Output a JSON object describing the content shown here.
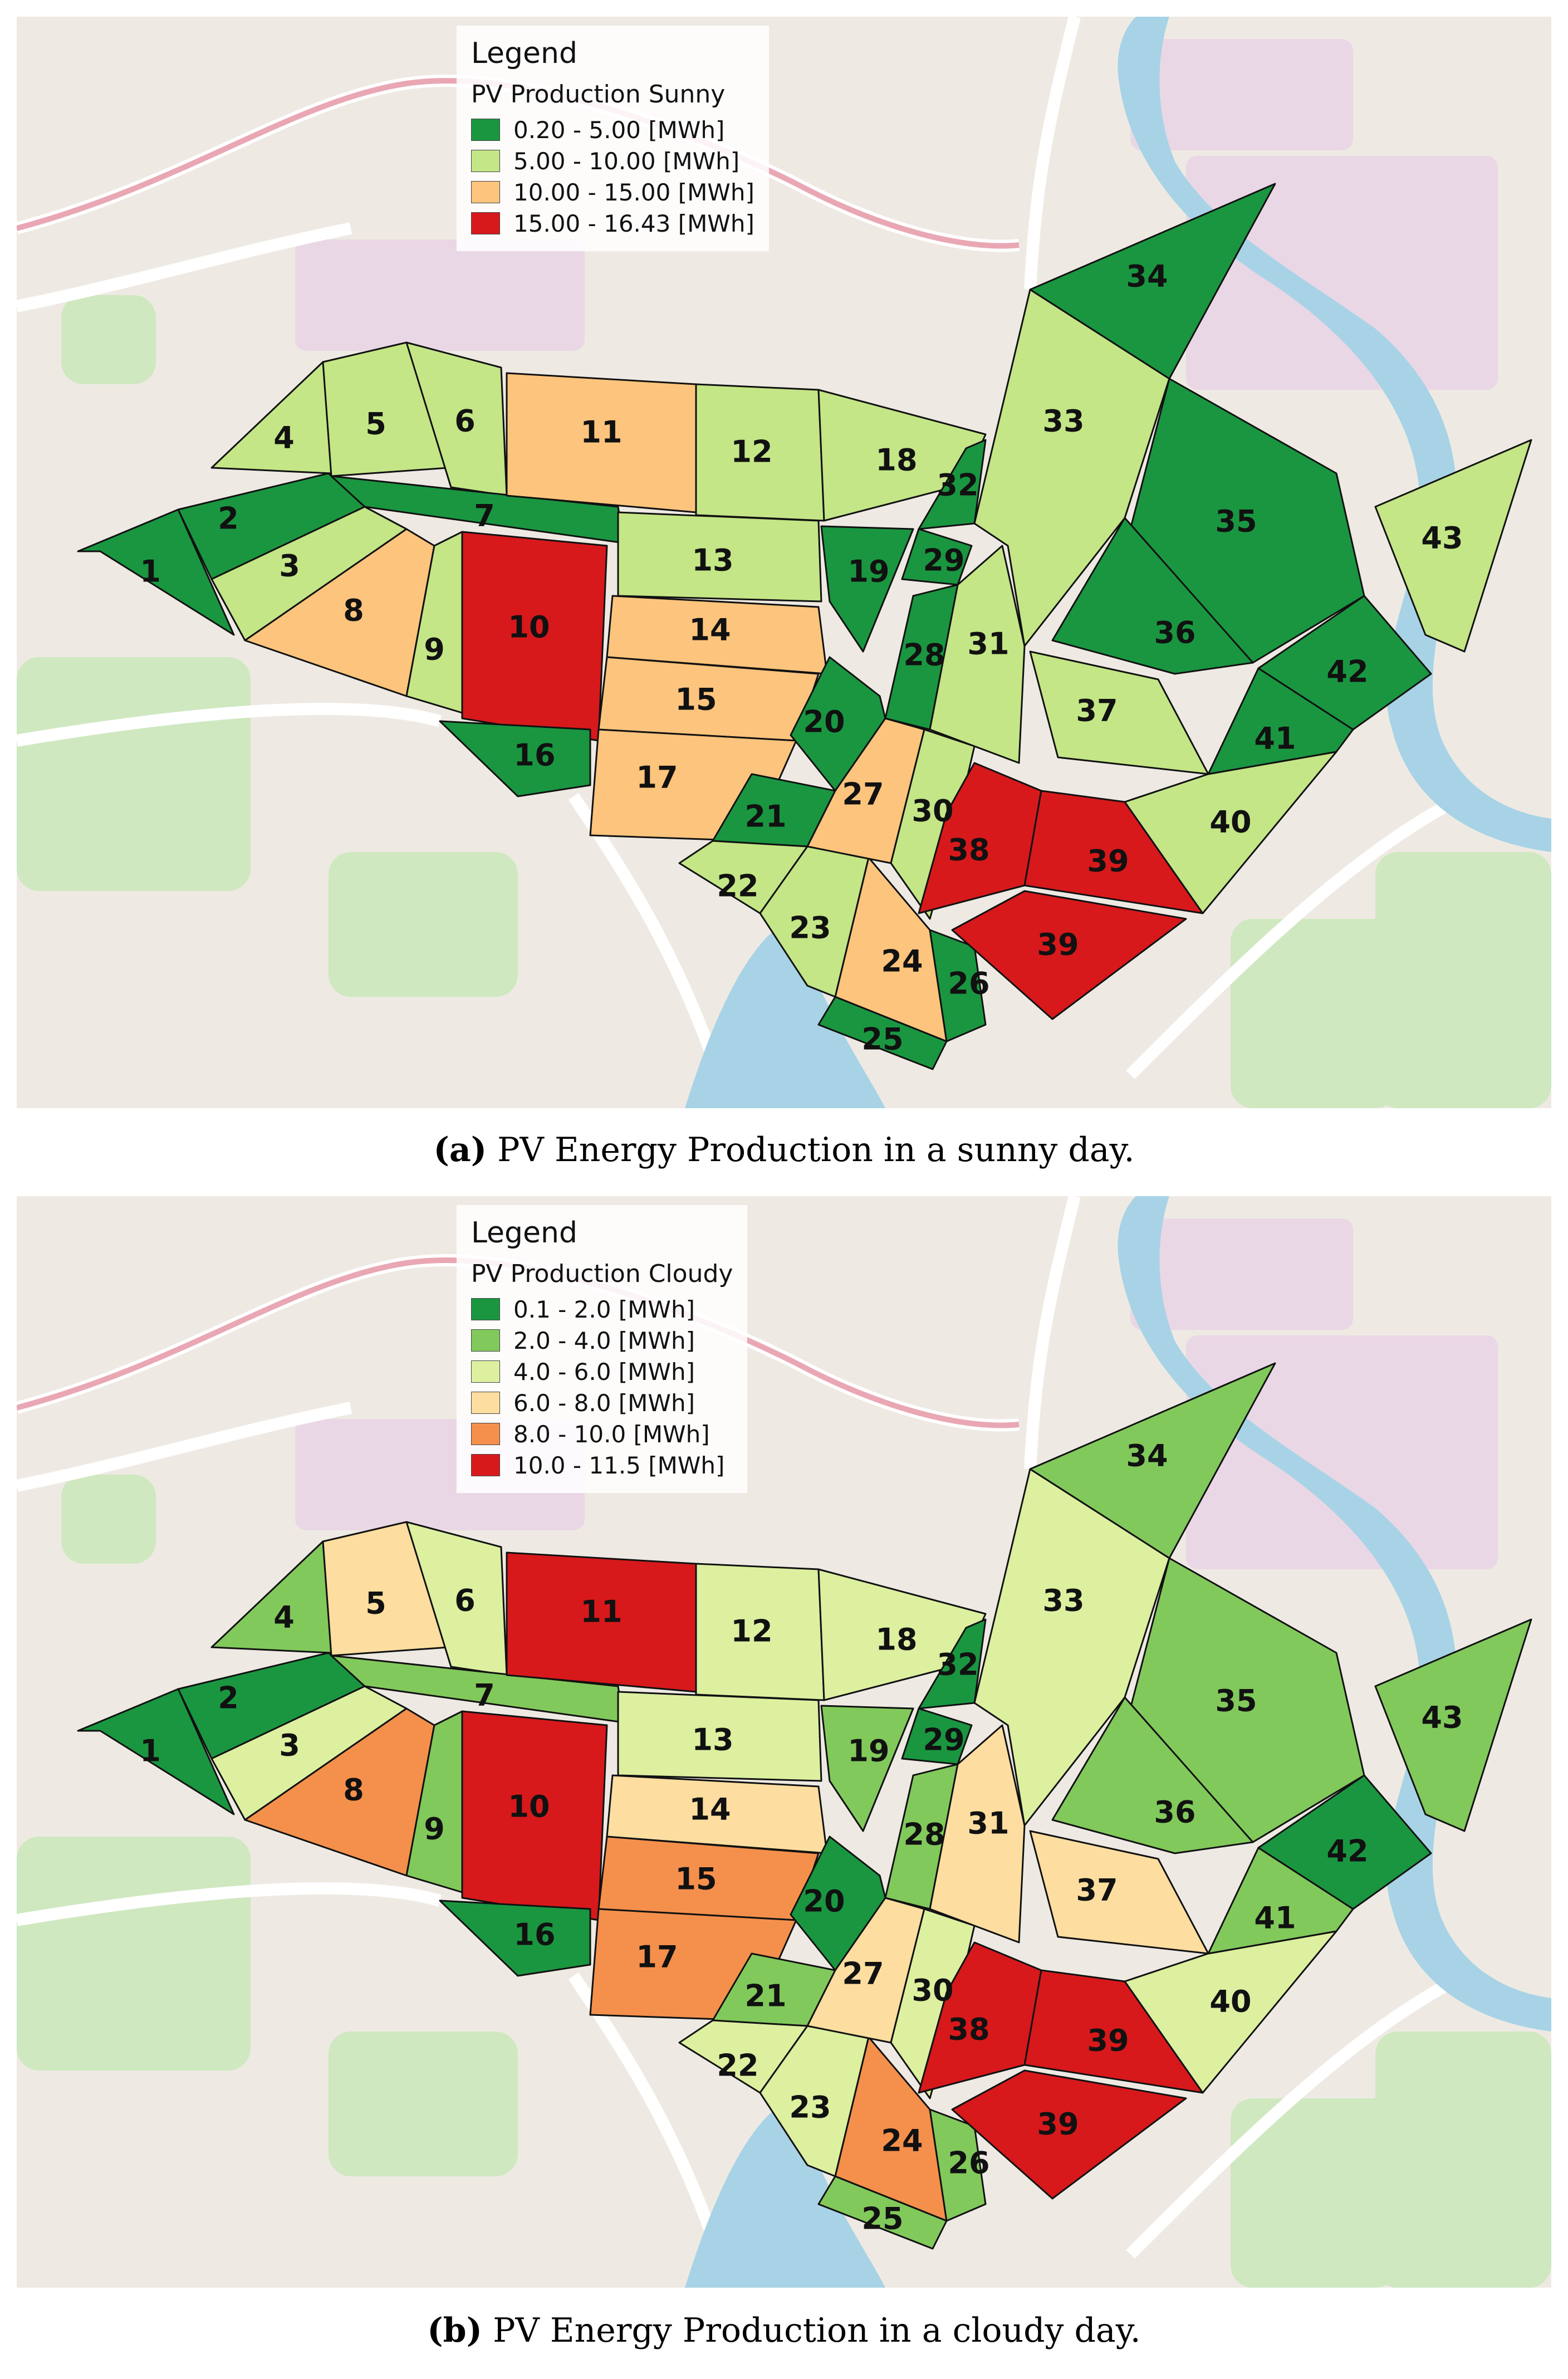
{
  "panels": [
    {
      "id": "a",
      "caption_label": "(a)",
      "caption_text": " PV Energy Production in a sunny day.",
      "legend": {
        "title": "Legend",
        "subtitle": "PV Production Sunny",
        "classes": [
          {
            "label": "0.20 - 5.00 [MWh]",
            "color": "#1a9641"
          },
          {
            "label": "5.00 - 10.00 [MWh]",
            "color": "#c4e687"
          },
          {
            "label": "10.00 - 15.00 [MWh]",
            "color": "#fdc47d"
          },
          {
            "label": "15.00 - 16.43 [MWh]",
            "color": "#d7191c"
          }
        ]
      },
      "zone_classes": {
        "1": 0,
        "2": 0,
        "3": 1,
        "4": 1,
        "5": 1,
        "6": 1,
        "7": 0,
        "8": 2,
        "9": 1,
        "10": 3,
        "11": 2,
        "12": 1,
        "13": 1,
        "14": 2,
        "15": 2,
        "16": 0,
        "17": 2,
        "18": 1,
        "19": 0,
        "20": 0,
        "21": 0,
        "22": 1,
        "23": 1,
        "24": 2,
        "25": 0,
        "26": 0,
        "27": 2,
        "28": 0,
        "29": 0,
        "30": 1,
        "31": 1,
        "32": 0,
        "33": 1,
        "34": 0,
        "35": 0,
        "36": 0,
        "37": 1,
        "38": 3,
        "39a": 3,
        "39b": 3,
        "40": 1,
        "41": 0,
        "42": 0,
        "43": 1
      }
    },
    {
      "id": "b",
      "caption_label": "(b)",
      "caption_text": " PV Energy Production in a cloudy day.",
      "legend": {
        "title": "Legend",
        "subtitle": "PV Production Cloudy",
        "classes": [
          {
            "label": "0.1 - 2.0 [MWh]",
            "color": "#1a9641"
          },
          {
            "label": "2.0 - 4.0 [MWh]",
            "color": "#82c95c"
          },
          {
            "label": "4.0 - 6.0 [MWh]",
            "color": "#dcf0a0"
          },
          {
            "label": "6.0 - 8.0 [MWh]",
            "color": "#fddea0"
          },
          {
            "label": "8.0 - 10.0 [MWh]",
            "color": "#f4904c"
          },
          {
            "label": "10.0 - 11.5 [MWh]",
            "color": "#d7191c"
          }
        ]
      },
      "zone_classes": {
        "1": 0,
        "2": 0,
        "3": 2,
        "4": 1,
        "5": 3,
        "6": 2,
        "7": 1,
        "8": 4,
        "9": 1,
        "10": 5,
        "11": 5,
        "12": 2,
        "13": 2,
        "14": 3,
        "15": 4,
        "16": 0,
        "17": 4,
        "18": 2,
        "19": 1,
        "20": 0,
        "21": 1,
        "22": 2,
        "23": 2,
        "24": 4,
        "25": 1,
        "26": 1,
        "27": 3,
        "28": 1,
        "29": 0,
        "30": 2,
        "31": 3,
        "32": 0,
        "33": 2,
        "34": 1,
        "35": 1,
        "36": 1,
        "37": 3,
        "38": 5,
        "39a": 5,
        "39b": 5,
        "40": 2,
        "41": 1,
        "42": 0,
        "43": 1
      }
    }
  ],
  "zones": [
    {
      "id": "1",
      "label": "1"
    },
    {
      "id": "2",
      "label": "2"
    },
    {
      "id": "3",
      "label": "3"
    },
    {
      "id": "4",
      "label": "4"
    },
    {
      "id": "5",
      "label": "5"
    },
    {
      "id": "6",
      "label": "6"
    },
    {
      "id": "7",
      "label": "7"
    },
    {
      "id": "8",
      "label": "8"
    },
    {
      "id": "9",
      "label": "9"
    },
    {
      "id": "10",
      "label": "10"
    },
    {
      "id": "11",
      "label": "11"
    },
    {
      "id": "12",
      "label": "12"
    },
    {
      "id": "13",
      "label": "13"
    },
    {
      "id": "14",
      "label": "14"
    },
    {
      "id": "15",
      "label": "15"
    },
    {
      "id": "16",
      "label": "16"
    },
    {
      "id": "17",
      "label": "17"
    },
    {
      "id": "18",
      "label": "18"
    },
    {
      "id": "19",
      "label": "19"
    },
    {
      "id": "20",
      "label": "20"
    },
    {
      "id": "21",
      "label": "21"
    },
    {
      "id": "22",
      "label": "22"
    },
    {
      "id": "23",
      "label": "23"
    },
    {
      "id": "24",
      "label": "24"
    },
    {
      "id": "25",
      "label": "25"
    },
    {
      "id": "26",
      "label": "26"
    },
    {
      "id": "27",
      "label": "27"
    },
    {
      "id": "28",
      "label": "28"
    },
    {
      "id": "29",
      "label": "29"
    },
    {
      "id": "30",
      "label": "30"
    },
    {
      "id": "31",
      "label": "31"
    },
    {
      "id": "32",
      "label": "32"
    },
    {
      "id": "33",
      "label": "33"
    },
    {
      "id": "34",
      "label": "34"
    },
    {
      "id": "35",
      "label": "35"
    },
    {
      "id": "36",
      "label": "36"
    },
    {
      "id": "37",
      "label": "37"
    },
    {
      "id": "38",
      "label": "38"
    },
    {
      "id": "39a",
      "label": "39"
    },
    {
      "id": "39b",
      "label": "39"
    },
    {
      "id": "40",
      "label": "40"
    },
    {
      "id": "41",
      "label": "41"
    },
    {
      "id": "42",
      "label": "42"
    },
    {
      "id": "43",
      "label": "43"
    }
  ]
}
